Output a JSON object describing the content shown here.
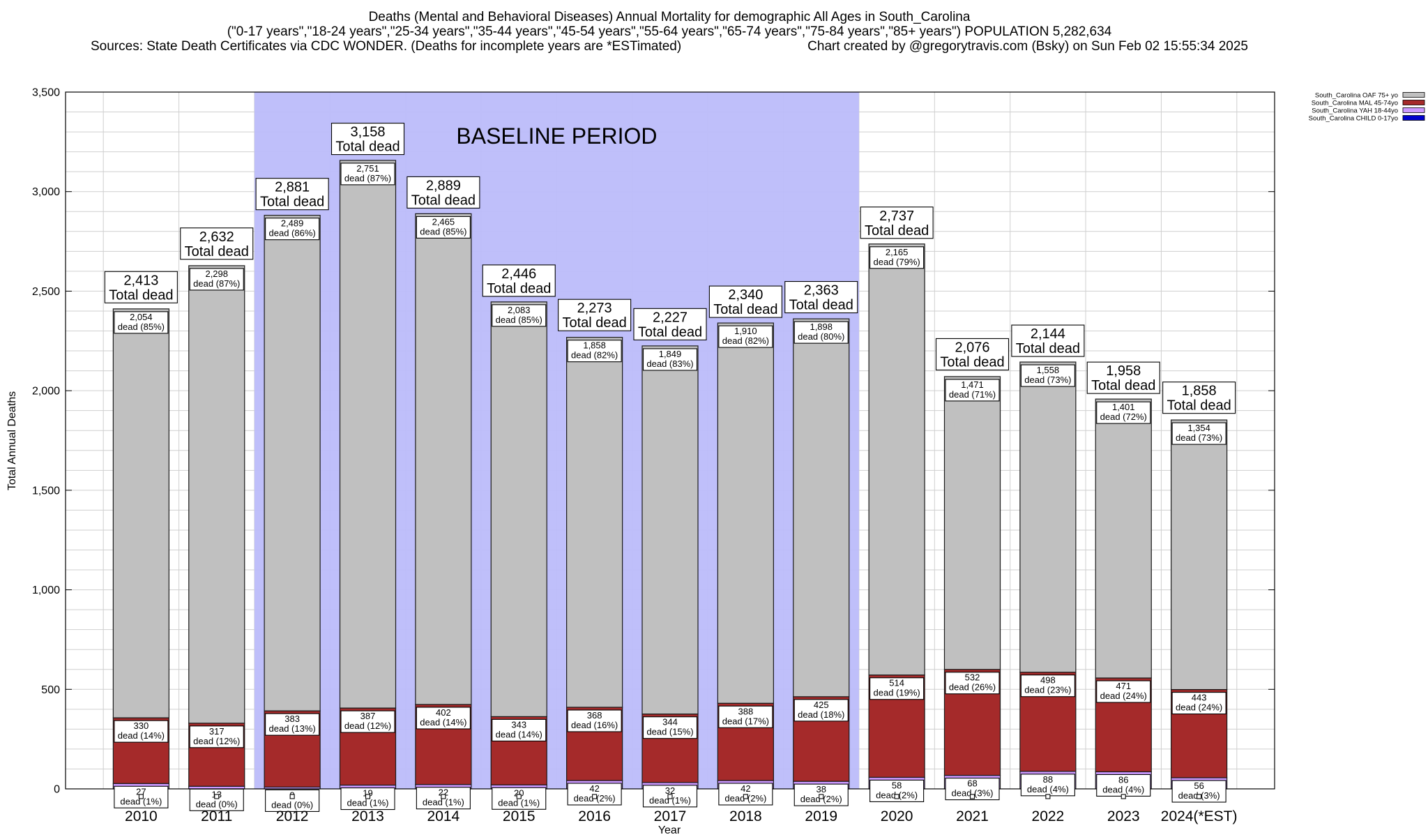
{
  "chart_data": {
    "type": "bar",
    "stacked": true,
    "title": "Deaths (Mental and Behavioral Diseases) Annual Mortality for demographic All Ages in South_Carolina",
    "subtitle": "(\"0-17 years\",\"18-24 years\",\"25-34 years\",\"35-44 years\",\"45-54 years\",\"55-64 years\",\"65-74 years\",\"75-84 years\",\"85+ years\") POPULATION 5,282,634",
    "source_note": "Sources: State Death Certificates via CDC WONDER. (Deaths for incomplete years are *ESTimated)",
    "credit": "Chart created by @gregorytravis.com (Bsky) on Sun Feb 02 15:55:34 2025",
    "xlabel": "Year",
    "ylabel": "Total Annual Deaths",
    "ylim": [
      0,
      3500
    ],
    "yticks": [
      0,
      500,
      1000,
      1500,
      2000,
      2500,
      3000,
      3500
    ],
    "grid": true,
    "legend": "top-right",
    "categories": [
      "2010",
      "2011",
      "2012",
      "2013",
      "2014",
      "2015",
      "2016",
      "2017",
      "2018",
      "2019",
      "2020",
      "2021",
      "2022",
      "2023",
      "2024(*EST)"
    ],
    "totals": [
      2413,
      2632,
      2881,
      3158,
      2889,
      2446,
      2273,
      2227,
      2340,
      2363,
      2737,
      2076,
      2144,
      1958,
      1858
    ],
    "total_label": "Total dead",
    "segment_label_word": "dead",
    "series": [
      {
        "name": "South_Carolina OAF 75+ yo",
        "color": "#c0c0c0",
        "values": [
          2054,
          2298,
          2489,
          2751,
          2465,
          2083,
          1858,
          1849,
          1910,
          1898,
          2165,
          1471,
          1558,
          1401,
          1354
        ],
        "percent": [
          85,
          87,
          86,
          87,
          85,
          85,
          82,
          83,
          82,
          80,
          79,
          71,
          73,
          72,
          73
        ]
      },
      {
        "name": "South_Carolina MAL 45-74yo",
        "color": "#a52a2a",
        "values": [
          330,
          317,
          383,
          387,
          402,
          343,
          368,
          344,
          388,
          425,
          514,
          532,
          498,
          471,
          443
        ],
        "percent": [
          14,
          12,
          13,
          12,
          14,
          14,
          16,
          15,
          17,
          18,
          19,
          26,
          23,
          24,
          24
        ]
      },
      {
        "name": "South_Carolina YAH 18-44yo",
        "color": "#cc99ff",
        "values": [
          27,
          13,
          9,
          19,
          22,
          20,
          42,
          32,
          42,
          38,
          58,
          68,
          88,
          86,
          56
        ],
        "percent": [
          1,
          0,
          0,
          1,
          1,
          1,
          2,
          1,
          2,
          2,
          2,
          3,
          4,
          4,
          3
        ]
      },
      {
        "name": "South_Carolina CHILD 0-17yo",
        "color": "#0000cc"
      }
    ],
    "annotation": {
      "text": "BASELINE PERIOD",
      "from": "2012",
      "to": "2019",
      "color": "#bcbcfa"
    }
  }
}
